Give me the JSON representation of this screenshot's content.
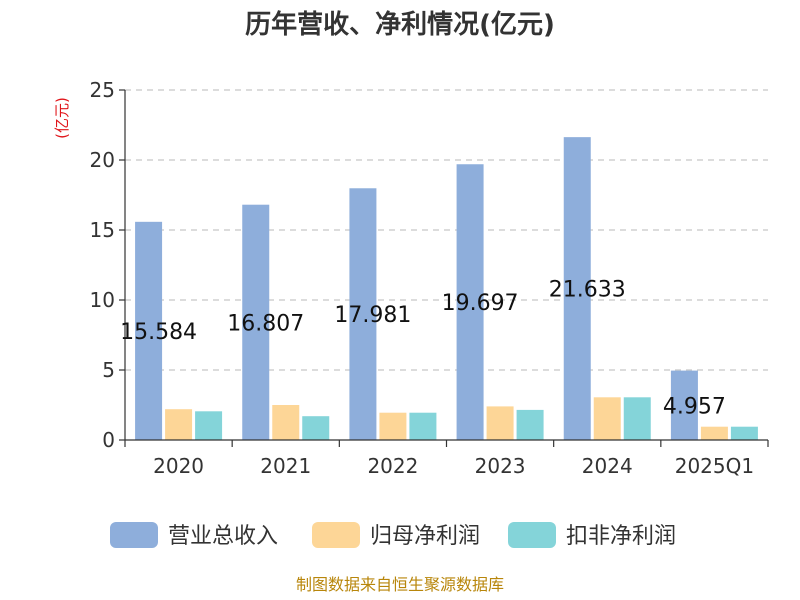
{
  "chart_data": {
    "type": "bar",
    "title": "历年营收、净利情况(亿元)",
    "ylabel": "(亿元)",
    "categories": [
      "2020",
      "2021",
      "2022",
      "2023",
      "2024",
      "2025Q1"
    ],
    "ylim": [
      0,
      25
    ],
    "yticks": [
      0,
      5,
      10,
      15,
      20,
      25
    ],
    "grid": true,
    "legend_position": "bottom",
    "series": [
      {
        "name": "营业总收入",
        "color": "#8eaedb",
        "values": [
          15.584,
          16.807,
          17.981,
          19.697,
          21.633,
          4.957
        ]
      },
      {
        "name": "归母净利润",
        "color": "#fdd697",
        "values": [
          2.2,
          2.5,
          1.95,
          2.4,
          3.05,
          0.95
        ]
      },
      {
        "name": "扣非净利润",
        "color": "#84d4d9",
        "values": [
          2.05,
          1.7,
          1.95,
          2.15,
          3.05,
          0.95
        ]
      }
    ],
    "data_labels": [
      "15.584",
      "16.807",
      "17.981",
      "19.697",
      "21.633",
      "4.957"
    ]
  },
  "source": "制图数据来自恒生聚源数据库"
}
